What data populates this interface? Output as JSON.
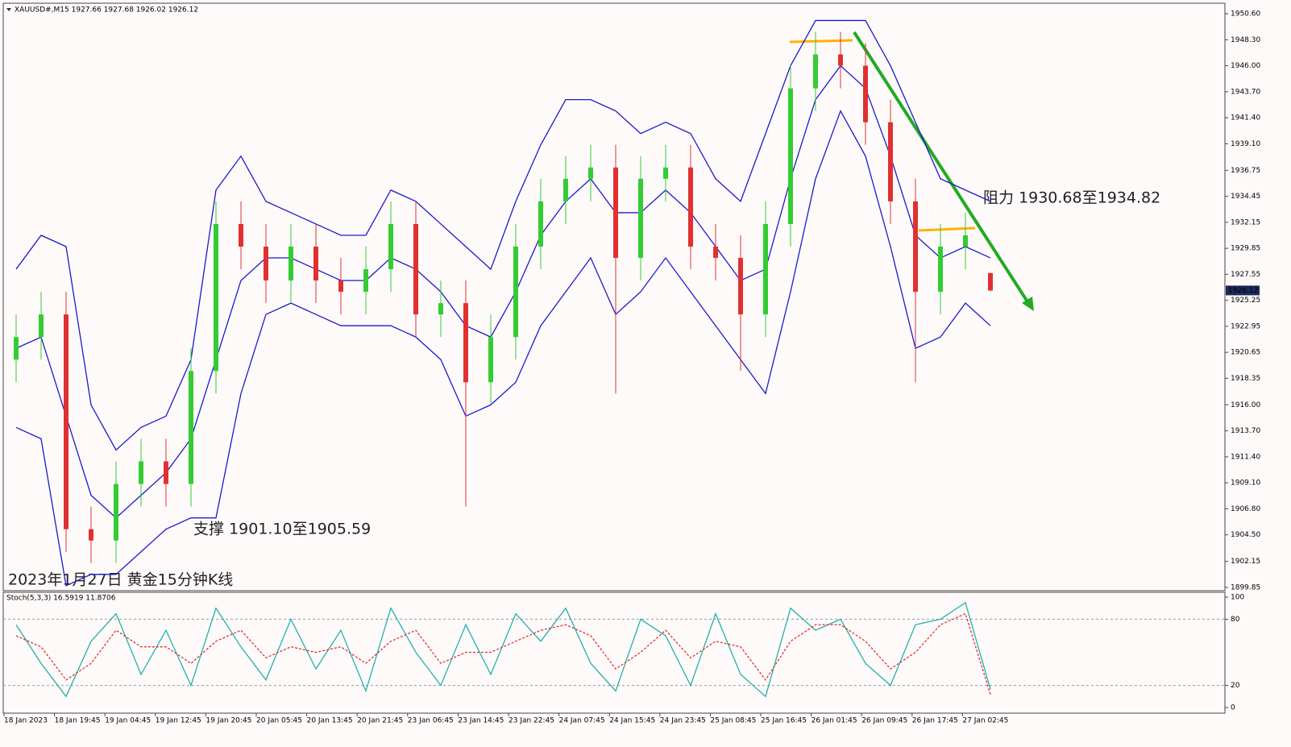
{
  "chart_data": [
    {
      "type": "candlestick",
      "title": "XAUUSD#,M15  1927.66 1927.68 1926.02 1926.12",
      "open": [
        1920,
        1922,
        1924,
        1905,
        1904,
        1909,
        1911,
        1909,
        1919,
        1932,
        1930,
        1927,
        1930,
        1927,
        1926,
        1928,
        1932,
        1924,
        1925,
        1918,
        1922,
        1930,
        1934,
        1936,
        1937,
        1929,
        1936,
        1937,
        1930,
        1929,
        1924,
        1932,
        1944,
        1947,
        1946,
        1941,
        1934,
        1926,
        1930,
        1927.66
      ],
      "high": [
        1924,
        1926,
        1926,
        1907,
        1911,
        1913,
        1913,
        1921,
        1934,
        1934,
        1932,
        1932,
        1932,
        1929,
        1930,
        1934,
        1934,
        1927,
        1927,
        1924,
        1932,
        1936,
        1938,
        1939,
        1939,
        1938,
        1939,
        1939,
        1932,
        1931,
        1934,
        1946,
        1949,
        1949,
        1948,
        1943,
        1936,
        1932,
        1933,
        1927.68
      ],
      "low": [
        1918,
        1920,
        1903,
        1902,
        1902,
        1907,
        1907,
        1907,
        1917,
        1928,
        1925,
        1925,
        1925,
        1924,
        1924,
        1926,
        1922,
        1922,
        1907,
        1916,
        1920,
        1928,
        1932,
        1934,
        1917,
        1927,
        1934,
        1928,
        1927,
        1919,
        1922,
        1930,
        1942,
        1944,
        1939,
        1932,
        1918,
        1924,
        1928,
        1926.02
      ],
      "close": [
        1922,
        1924,
        1905,
        1904,
        1909,
        1911,
        1909,
        1919,
        1932,
        1930,
        1927,
        1930,
        1927,
        1926,
        1928,
        1932,
        1924,
        1925,
        1918,
        1922,
        1930,
        1934,
        1936,
        1937,
        1929,
        1936,
        1937,
        1930,
        1929,
        1924,
        1932,
        1944,
        1947,
        1946,
        1941,
        1934,
        1926,
        1930,
        1931,
        1926.12
      ],
      "up_color": "#33cc33",
      "down_color": "#e03030",
      "series": [
        {
          "color": "#1a1acc",
          "values": [
            1928,
            1931,
            1930,
            1916,
            1912,
            1914,
            1915,
            1920,
            1935,
            1938,
            1934,
            1933,
            1932,
            1931,
            1931,
            1935,
            1934,
            1932,
            1930,
            1928,
            1934,
            1939,
            1943,
            1943,
            1942,
            1940,
            1941,
            1940,
            1936,
            1934,
            1940,
            1946,
            1950,
            1950,
            1950,
            1946,
            1941,
            1936,
            1935,
            1934
          ]
        },
        {
          "color": "#1a1acc",
          "values": [
            1921,
            1922,
            1915,
            1908,
            1906,
            1908,
            1910,
            1913,
            1920,
            1927,
            1929,
            1929,
            1928,
            1927,
            1927,
            1929,
            1928,
            1926,
            1923,
            1922,
            1926,
            1931,
            1934,
            1936,
            1933,
            1933,
            1935,
            1933,
            1930,
            1927,
            1928,
            1936,
            1943,
            1946,
            1944,
            1938,
            1931,
            1929,
            1930,
            1929
          ]
        },
        {
          "color": "#1a1acc",
          "values": [
            1914,
            1913,
            1900,
            1901,
            1901,
            1903,
            1905,
            1906,
            1906,
            1917,
            1924,
            1925,
            1924,
            1923,
            1923,
            1923,
            1922,
            1920,
            1915,
            1916,
            1918,
            1923,
            1926,
            1929,
            1924,
            1926,
            1929,
            1926,
            1923,
            1920,
            1917,
            1926,
            1936,
            1942,
            1938,
            1930,
            1921,
            1922,
            1925,
            1923
          ]
        }
      ],
      "ylim": [
        1899.56,
        1951.53
      ],
      "yticks": [
        {
          "value": 1950.6,
          "label": "1950.60"
        },
        {
          "value": 1948.3,
          "label": "1948.30"
        },
        {
          "value": 1946,
          "label": "1946.00"
        },
        {
          "value": 1943.7,
          "label": "1943.70"
        },
        {
          "value": 1941.4,
          "label": "1941.40"
        },
        {
          "value": 1939.1,
          "label": "1939.10"
        },
        {
          "value": 1936.75,
          "label": "1936.75"
        },
        {
          "value": 1934.45,
          "label": "1934.45"
        },
        {
          "value": 1932.15,
          "label": "1932.15"
        },
        {
          "value": 1929.85,
          "label": "1929.85"
        },
        {
          "value": 1927.55,
          "label": "1927.55"
        },
        {
          "value": 1925.25,
          "label": "1925.25"
        },
        {
          "value": 1922.95,
          "label": "1922.95"
        },
        {
          "value": 1920.65,
          "label": "1920.65"
        },
        {
          "value": 1918.35,
          "label": "1918.35"
        },
        {
          "value": 1916,
          "label": "1916.00"
        },
        {
          "value": 1913.7,
          "label": "1913.70"
        },
        {
          "value": 1911.4,
          "label": "1911.40"
        },
        {
          "value": 1909.1,
          "label": "1909.10"
        },
        {
          "value": 1906.8,
          "label": "1906.80"
        },
        {
          "value": 1904.5,
          "label": "1904.50"
        },
        {
          "value": 1902.15,
          "label": "1902.15"
        },
        {
          "value": 1899.85,
          "label": "1899.85"
        }
      ],
      "last_price": 1926.12,
      "annotations": [
        "阻力 1930.68至1934.82",
        "支撑 1901.10至1905.59",
        "2023年1月27日 黄金15分钟K线"
      ]
    },
    {
      "type": "line",
      "title": "Stoch(5,3,3) 16.5919 11.8706",
      "series": [
        {
          "color": "#20b2aa",
          "values": [
            75,
            40,
            10,
            60,
            85,
            30,
            70,
            20,
            90,
            55,
            25,
            80,
            35,
            70,
            15,
            90,
            50,
            20,
            75,
            30,
            85,
            60,
            90,
            40,
            15,
            80,
            65,
            20,
            85,
            30,
            10,
            90,
            70,
            80,
            40,
            20,
            75,
            80,
            95,
            16.5919
          ]
        },
        {
          "color": "#e03030",
          "values": [
            65,
            55,
            25,
            40,
            70,
            55,
            55,
            40,
            60,
            70,
            45,
            55,
            50,
            55,
            40,
            60,
            70,
            40,
            50,
            50,
            60,
            70,
            75,
            65,
            35,
            50,
            70,
            45,
            60,
            55,
            25,
            60,
            75,
            75,
            60,
            35,
            50,
            75,
            85,
            11.8706
          ]
        }
      ],
      "ylim": [
        -5.1,
        104.4
      ],
      "yticks": [
        100,
        80,
        20,
        0
      ],
      "levels": [
        80,
        20
      ],
      "x_labels": [
        "18 Jan 2023",
        "18 Jan 19:45",
        "19 Jan 04:45",
        "19 Jan 12:45",
        "19 Jan 20:45",
        "20 Jan 05:45",
        "20 Jan 13:45",
        "20 Jan 21:45",
        "23 Jan 06:45",
        "23 Jan 14:45",
        "23 Jan 22:45",
        "24 Jan 07:45",
        "24 Jan 15:45",
        "24 Jan 23:45",
        "25 Jan 08:45",
        "25 Jan 16:45",
        "26 Jan 01:45",
        "26 Jan 09:45",
        "26 Jan 17:45",
        "27 Jan 02:45"
      ]
    }
  ]
}
